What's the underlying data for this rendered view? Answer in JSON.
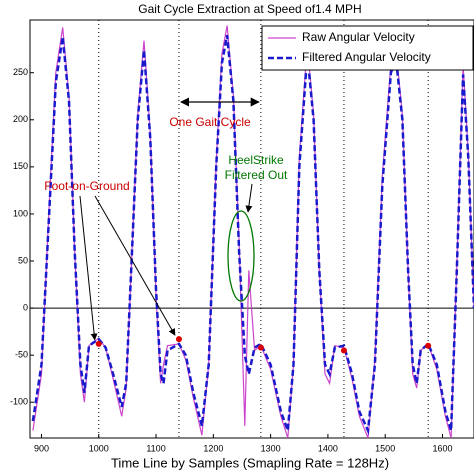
{
  "chart_data": {
    "type": "line",
    "title": "Gait Cycle Extraction at Speed of1.4 MPH",
    "xlabel": "Time Line by Samples (Smapling Rate = 128Hz)",
    "xlim": [
      880,
      1655
    ],
    "ylim": [
      -138,
      306
    ],
    "xticks": [
      900,
      1000,
      1100,
      1200,
      1300,
      1400,
      1500,
      1600
    ],
    "yticks": [
      -100,
      -50,
      0,
      50,
      100,
      150,
      200,
      250
    ],
    "legend": "upper right",
    "x": [
      885,
      900,
      915,
      925,
      937,
      948,
      958,
      968,
      975,
      983,
      1000,
      1012,
      1025,
      1040,
      1048,
      1058,
      1068,
      1079,
      1090,
      1100,
      1108,
      1113,
      1120,
      1140,
      1152,
      1165,
      1180,
      1192,
      1205,
      1215,
      1224,
      1235,
      1245,
      1255,
      1262,
      1272,
      1283,
      1300,
      1318,
      1330,
      1340,
      1350,
      1364,
      1375,
      1385,
      1395,
      1403,
      1412,
      1428,
      1442,
      1455,
      1470,
      1482,
      1495,
      1510,
      1519,
      1530,
      1540,
      1548,
      1555,
      1562,
      1575,
      1590,
      1605,
      1615,
      1625,
      1636,
      1645,
      1655
    ],
    "series": [
      {
        "name": "Raw Angular Velocity",
        "color": "#cc44cc",
        "values": [
          -130,
          -70,
          130,
          250,
          298,
          225,
          60,
          -70,
          -100,
          -40,
          -32,
          -42,
          -75,
          -115,
          -85,
          60,
          205,
          284,
          185,
          15,
          -80,
          -60,
          -40,
          -38,
          -55,
          -95,
          -135,
          -60,
          155,
          270,
          300,
          225,
          70,
          -125,
          40,
          -45,
          -40,
          -65,
          -115,
          -138,
          -60,
          160,
          280,
          205,
          40,
          -70,
          -80,
          -40,
          -42,
          -75,
          -115,
          -138,
          -55,
          140,
          260,
          274,
          205,
          40,
          -70,
          -85,
          -45,
          -38,
          -65,
          -115,
          -138,
          45,
          258,
          165,
          0
        ]
      },
      {
        "name": "Filtered Angular Velocity",
        "color": "#1a1acc",
        "values": [
          -120,
          -60,
          120,
          240,
          288,
          220,
          60,
          -60,
          -90,
          -40,
          -33,
          -42,
          -70,
          -105,
          -80,
          60,
          200,
          274,
          180,
          20,
          -70,
          -80,
          -45,
          -38,
          -50,
          -90,
          -125,
          -60,
          150,
          260,
          290,
          220,
          60,
          -50,
          -70,
          -42,
          -38,
          -60,
          -110,
          -130,
          -60,
          150,
          270,
          200,
          40,
          -60,
          -70,
          -42,
          -40,
          -70,
          -110,
          -130,
          -60,
          130,
          250,
          264,
          200,
          40,
          -60,
          -80,
          -45,
          -38,
          -60,
          -110,
          -130,
          40,
          248,
          160,
          0
        ]
      }
    ],
    "markers": {
      "color": "#dd0000",
      "x": [
        1000,
        1140,
        1283,
        1428,
        1575
      ],
      "values": [
        -38,
        -33,
        -42,
        -45,
        -40
      ]
    },
    "annotations": {
      "cycle": "One Gait Cycle",
      "heel": [
        "HeelStrike",
        "Filtered Out"
      ],
      "foot": "Foot-on-Ground"
    }
  }
}
